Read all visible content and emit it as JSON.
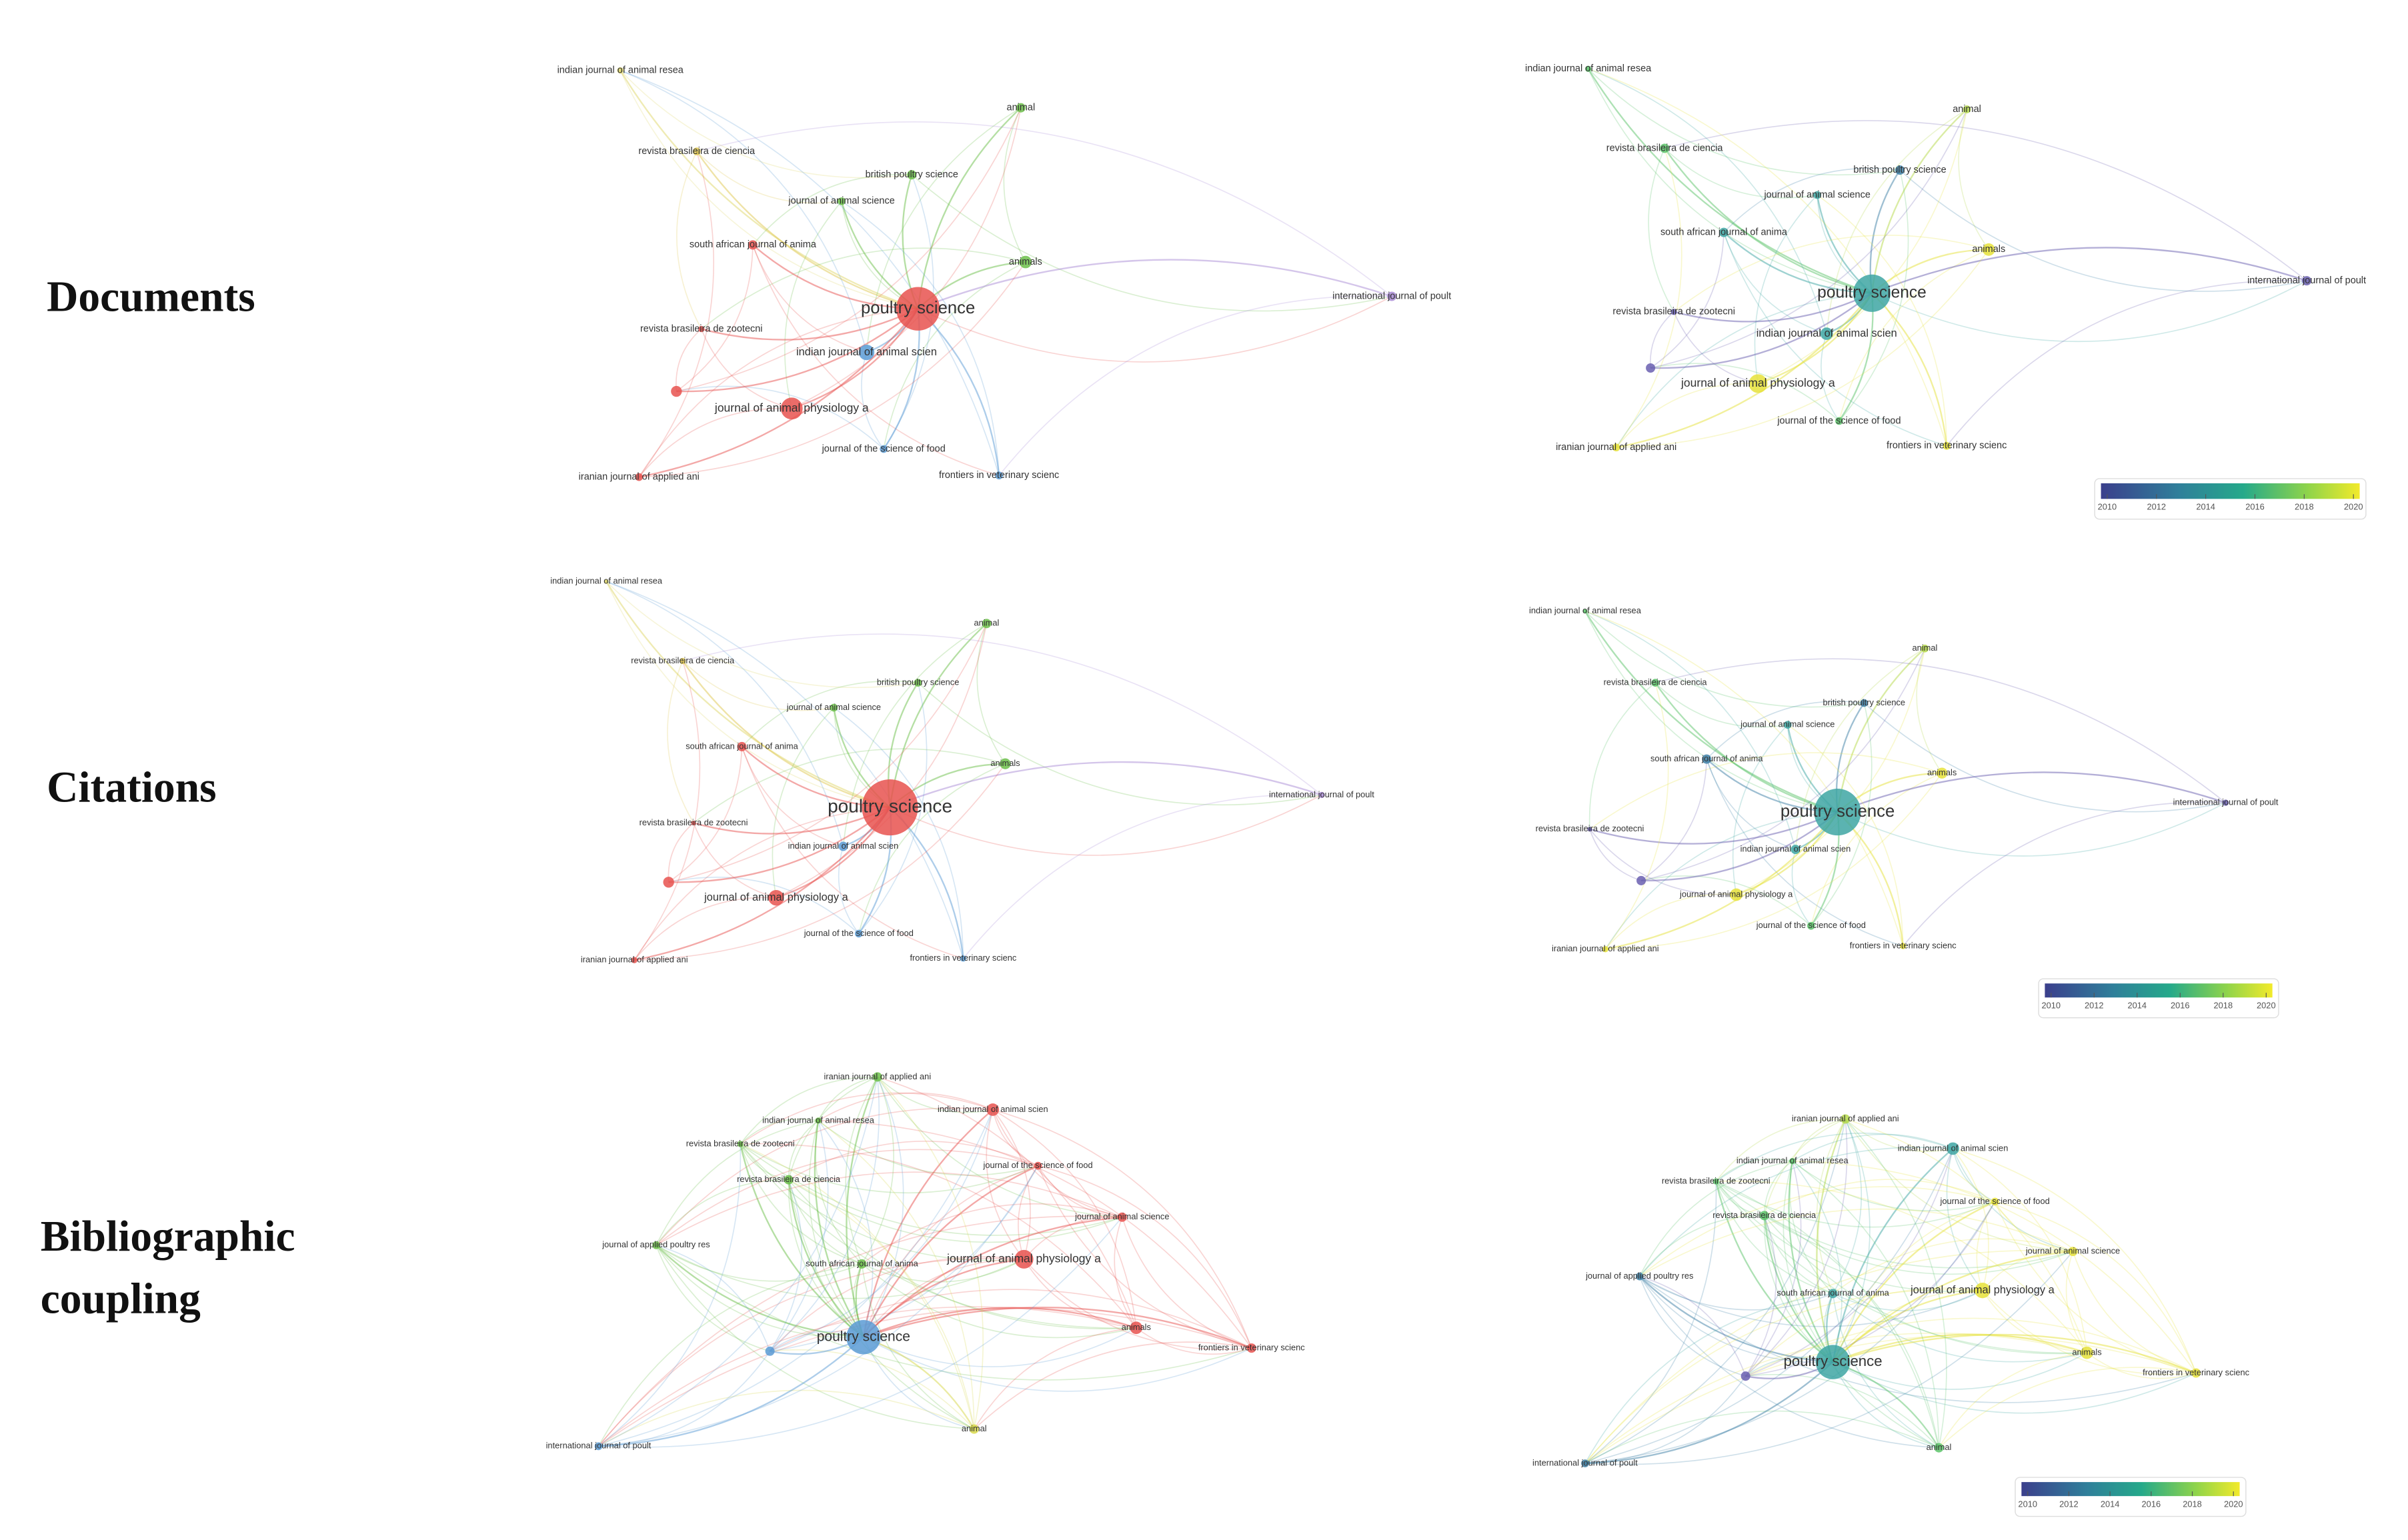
{
  "rows": [
    {
      "label_lines": [
        "Documents"
      ]
    },
    {
      "label_lines": [
        "Citations"
      ]
    },
    {
      "label_lines": [
        "Bibliographic",
        "coupling"
      ]
    }
  ],
  "panels": [
    {
      "nodes": [
        "indian journal of animal resea",
        "revista brasileira de ciencia",
        "animal",
        "british poultry science",
        "journal of animal science",
        "animals",
        "south african journal of anima",
        "poultry science",
        "revista brasileira de zootecni",
        "indian journal of animal scien",
        "international journal of poult",
        "journal of animal physiology a",
        "journal of the science of food",
        "frontiers in veterinary scienc",
        "iranian journal of applied ani"
      ]
    },
    {
      "nodes": [
        "indian journal of animal resea",
        "revista brasileira de ciencia",
        "animal",
        "british poultry science",
        "journal of animal science",
        "animals",
        "south african journal of anima",
        "poultry science",
        "revista brasileira de zootecni",
        "indian journal of animal scien",
        "international journal of poult",
        "journal of animal physiology a",
        "journal of the science of food",
        "frontiers in veterinary scienc",
        "iranian journal of applied ani"
      ],
      "legend_ticks": [
        2010,
        2012,
        2014,
        2016,
        2018,
        2020
      ]
    },
    {
      "nodes": [
        "indian journal of animal resea",
        "revista brasileira de ciencia",
        "animal",
        "british poultry science",
        "journal of animal science",
        "animals",
        "south african journal of anima",
        "poultry science",
        "revista brasileira de zootecni",
        "indian journal of animal scien",
        "international journal of poult",
        "journal of animal physiology a",
        "journal of the science of food",
        "frontiers in veterinary scienc",
        "iranian journal of applied ani"
      ]
    },
    {
      "nodes": [
        "indian journal of animal resea",
        "revista brasileira de ciencia",
        "animal",
        "british poultry science",
        "journal of animal science",
        "animals",
        "south african journal of anima",
        "poultry science",
        "revista brasileira de zootecni",
        "indian journal of animal scien",
        "international journal of poult",
        "journal of animal physiology a",
        "journal of the science of food",
        "frontiers in veterinary scienc",
        "iranian journal of applied ani"
      ],
      "legend_ticks": [
        2010,
        2012,
        2014,
        2016,
        2018,
        2020
      ]
    },
    {
      "nodes": [
        "iranian journal of applied ani",
        "indian journal of animal scien",
        "indian journal of animal resea",
        "revista brasileira de zootecni",
        "journal of the science of food",
        "revista brasileira de ciencia",
        "journal of animal science",
        "journal of applied poultry res",
        "south african journal of anima",
        "journal of animal physiology a",
        "poultry science",
        "animals",
        "frontiers in veterinary scienc",
        "animal",
        "international journal of poult"
      ]
    },
    {
      "nodes": [
        "iranian journal of applied ani",
        "indian journal of animal scien",
        "indian journal of animal resea",
        "revista brasileira de zootecni",
        "journal of the science of food",
        "revista brasileira de ciencia",
        "journal of animal science",
        "journal of applied poultry res",
        "south african journal of anima",
        "journal of animal physiology a",
        "poultry science",
        "animals",
        "frontiers in veterinary scienc",
        "animal",
        "international journal of poult"
      ],
      "legend_ticks": [
        2010,
        2012,
        2014,
        2016,
        2018,
        2020
      ]
    }
  ]
}
